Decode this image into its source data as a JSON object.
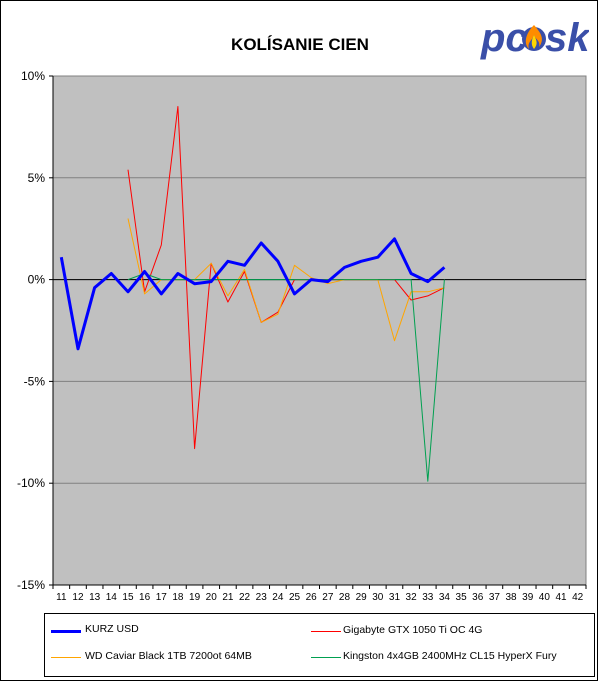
{
  "colors": {
    "plot_bg": "#c0c0c0",
    "grid": "#808080",
    "kurz": "#0000ff",
    "gigabyte": "#ff0000",
    "wd": "#ffa500",
    "kingston": "#00a050",
    "logo_text": "#3a4fa8",
    "logo_flame": "#ff8c00"
  },
  "logo": {
    "text_left": "pc",
    "text_right": "sk",
    "icon": "flame-icon"
  },
  "chart_data": {
    "type": "line",
    "title": "KOLÍSANIE CIEN",
    "xlabel": "",
    "ylabel": "",
    "ylim": [
      -15,
      10
    ],
    "y_ticks": [
      10,
      5,
      0,
      -5,
      -10,
      -15
    ],
    "y_tick_labels": [
      "10%",
      "5%",
      "0%",
      "-5%",
      "-10%",
      "-15%"
    ],
    "grid": true,
    "legend_position": "bottom",
    "x": [
      11,
      12,
      13,
      14,
      15,
      16,
      17,
      18,
      19,
      20,
      21,
      22,
      23,
      24,
      25,
      26,
      27,
      28,
      29,
      30,
      31,
      32,
      33,
      34,
      35,
      36,
      37,
      38,
      39,
      40,
      41,
      42
    ],
    "x_tick_labels": [
      "11",
      "12",
      "13",
      "14",
      "15",
      "16",
      "17",
      "18",
      "19",
      "20",
      "21",
      "22",
      "23",
      "24",
      "25",
      "26",
      "27",
      "28",
      "29",
      "30",
      "31",
      "32",
      "33",
      "34",
      "35",
      "36",
      "37",
      "38",
      "39",
      "40",
      "41",
      "42"
    ],
    "series": [
      {
        "name": "KURZ USD",
        "color": "#0000ff",
        "width": 3,
        "values": [
          1.1,
          -3.4,
          -0.4,
          0.3,
          -0.6,
          0.4,
          -0.7,
          0.3,
          -0.2,
          -0.1,
          0.9,
          0.7,
          1.8,
          0.9,
          -0.7,
          0.0,
          -0.1,
          0.6,
          0.9,
          1.1,
          2.0,
          0.3,
          -0.1,
          0.6,
          null,
          null,
          null,
          null,
          null,
          null,
          null,
          null
        ]
      },
      {
        "name": "Gigabyte GTX 1050 Ti OC 4G",
        "color": "#ff0000",
        "width": 1,
        "values": [
          null,
          null,
          null,
          null,
          5.4,
          -0.6,
          1.7,
          8.5,
          -8.3,
          0.8,
          -1.1,
          0.4,
          -2.1,
          -1.6,
          0.0,
          0.0,
          0.0,
          0.0,
          0.0,
          0.0,
          0.0,
          -1.0,
          -0.8,
          -0.4,
          null,
          null,
          null,
          null,
          null,
          null,
          null,
          null
        ]
      },
      {
        "name": "WD Caviar Black 1TB 7200ot 64MB",
        "color": "#ffa500",
        "width": 1,
        "values": [
          null,
          null,
          null,
          null,
          3.0,
          -0.7,
          0.0,
          0.0,
          0.0,
          0.8,
          -0.8,
          0.5,
          -2.1,
          -1.7,
          0.7,
          0.1,
          -0.2,
          0.0,
          0.0,
          0.0,
          -3.0,
          -0.6,
          -0.6,
          -0.4,
          null,
          null,
          null,
          null,
          null,
          null,
          null,
          null
        ]
      },
      {
        "name": "Kingston 4x4GB 2400MHz CL15 HyperX Fury",
        "color": "#00a050",
        "width": 1,
        "values": [
          null,
          null,
          null,
          null,
          0.0,
          0.3,
          0.0,
          0.0,
          0.0,
          0.0,
          0.0,
          0.0,
          0.0,
          0.0,
          0.0,
          0.0,
          0.0,
          0.0,
          0.0,
          0.0,
          0.0,
          0.0,
          -9.9,
          0.0,
          null,
          null,
          null,
          null,
          null,
          null,
          null,
          null
        ]
      }
    ]
  }
}
